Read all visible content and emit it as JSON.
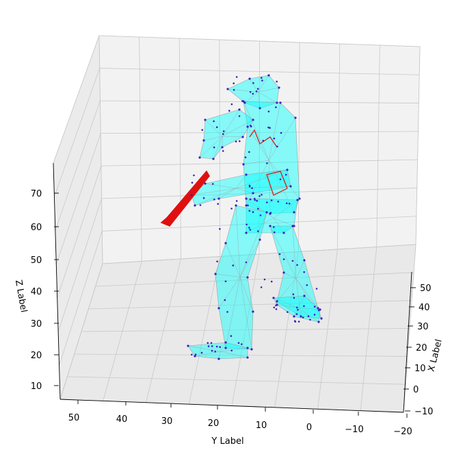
{
  "chart_data": {
    "type": "3d-mesh-scatter",
    "title": "",
    "xlabel": "X Label",
    "ylabel": "Y Label",
    "zlabel": "Z Label",
    "x_ticks": [
      "50",
      "40",
      "30",
      "20",
      "10",
      "0",
      "−10"
    ],
    "y_ticks": [
      "50",
      "40",
      "30",
      "20",
      "10",
      "0",
      "−10",
      "−20"
    ],
    "z_ticks": [
      "70",
      "60",
      "50",
      "40",
      "30",
      "20",
      "10"
    ],
    "grid": true,
    "colors": {
      "mesh_fill": "#00ffff",
      "mesh_edge": "#a0a0a0",
      "points": "#3b1fbf",
      "bat": "#e01010",
      "pane": "#f2f2f2",
      "grid": "#cccccc"
    }
  }
}
